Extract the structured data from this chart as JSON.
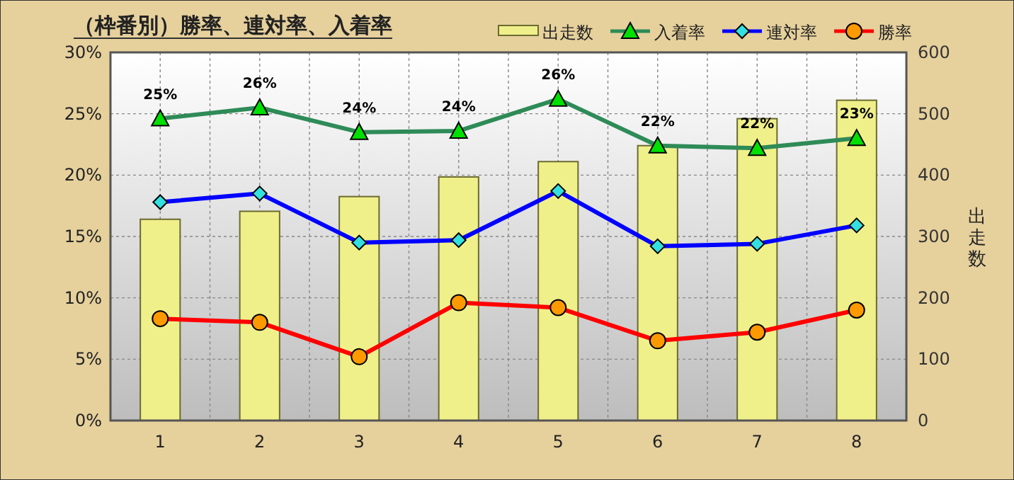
{
  "chart_data": {
    "type": "line",
    "title": "（枠番別）勝率、連対率、入着率",
    "y2label": "出走数",
    "categories": [
      "1",
      "2",
      "3",
      "4",
      "5",
      "6",
      "7",
      "8"
    ],
    "ylim": [
      0,
      30
    ],
    "yticks": [
      {
        "value": 0,
        "label": "0%"
      },
      {
        "value": 5,
        "label": "5%"
      },
      {
        "value": 10,
        "label": "10%"
      },
      {
        "value": 15,
        "label": "15%"
      },
      {
        "value": 20,
        "label": "20%"
      },
      {
        "value": 25,
        "label": "25%"
      },
      {
        "value": 30,
        "label": "30%"
      }
    ],
    "y2lim": [
      0,
      600
    ],
    "y2ticks": [
      0,
      100,
      200,
      300,
      400,
      500,
      600
    ],
    "grid": true,
    "legend": "top",
    "series": [
      {
        "name": "出走数",
        "type": "bar",
        "axis": "y2",
        "color": "#f0f08a",
        "values": [
          328,
          341,
          365,
          397,
          422,
          448,
          492,
          522
        ]
      },
      {
        "name": "入着率",
        "color": "#2e8b57",
        "marker": "triangle",
        "values": [
          24.6,
          25.5,
          23.5,
          23.6,
          26.2,
          22.4,
          22.2,
          23.0
        ],
        "value_labels": [
          "25%",
          "26%",
          "24%",
          "24%",
          "26%",
          "22%",
          "22%",
          "23%"
        ]
      },
      {
        "name": "連対率",
        "color": "#0000ff",
        "marker": "diamond",
        "values": [
          17.8,
          18.5,
          14.5,
          14.7,
          18.7,
          14.2,
          14.4,
          15.9
        ]
      },
      {
        "name": "勝率",
        "color": "#ff0000",
        "marker": "circle",
        "values": [
          8.3,
          8.0,
          5.2,
          9.6,
          9.2,
          6.5,
          7.2,
          9.0
        ]
      }
    ]
  }
}
